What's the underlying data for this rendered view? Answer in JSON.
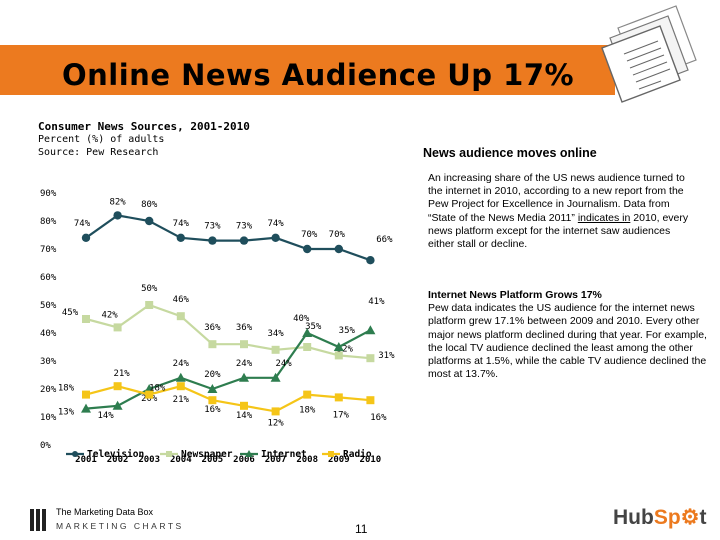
{
  "slide": {
    "title": "Online News Audience Up 17%",
    "accent_color": "#ec7a1f",
    "page_number": "11",
    "icon": "documents-icon"
  },
  "chart_head": {
    "title": "Consumer News Sources, 2001-2010",
    "subtitle": "Percent (%) of adults",
    "source": "Source:  Pew Research"
  },
  "side": {
    "title": "News audience moves online",
    "para1_before": "An increasing share of the US news audience turned to the internet in 2010, according to a new report from the Pew Project for Excellence in Journalism. Data from “State of the News Media 2011” ",
    "para1_link": "indicates in",
    "para1_after": " 2010, every news platform except for the internet saw audiences either stall or decline.",
    "para2_heading": "Internet News Platform Grows 17%",
    "para2_body": "Pew data indicates the US audience for the internet news platform grew 17.1% between 2009 and 2010. Every other major news platform declined during that year. For example, the local TV audience declined the least among the other platforms at 1.5%, while the cable TV audience declined the most at 13.7%."
  },
  "footer": {
    "source_name": "The Marketing Data Box",
    "source_sub": "MARKETING CHARTS",
    "brand_a": "Hub",
    "brand_b": "Sp",
    "brand_c": "t"
  },
  "chart_data": {
    "type": "line",
    "title": "Consumer News Sources, 2001-2010",
    "ylabel": "Percent (%) of adults",
    "ylim": [
      0,
      90
    ],
    "yticks": [
      0,
      10,
      20,
      30,
      40,
      50,
      60,
      70,
      80,
      90
    ],
    "x": [
      "2001",
      "2002",
      "2003",
      "2004",
      "2005",
      "2006",
      "2007",
      "2008",
      "2009",
      "2010"
    ],
    "series": [
      {
        "name": "Television",
        "color": "#1f4e5c",
        "marker": "circle",
        "values": [
          74,
          82,
          80,
          74,
          73,
          73,
          74,
          70,
          70,
          66
        ]
      },
      {
        "name": "Newspaper",
        "color": "#c6d9a0",
        "marker": "square",
        "values": [
          45,
          42,
          50,
          46,
          36,
          36,
          34,
          35,
          32,
          31
        ]
      },
      {
        "name": "Internet",
        "color": "#2e7d4f",
        "marker": "triangle",
        "values": [
          13,
          14,
          20,
          24,
          20,
          24,
          24,
          40,
          35,
          41
        ]
      },
      {
        "name": "Radio",
        "color": "#f5c518",
        "marker": "square",
        "values": [
          18,
          21,
          18,
          21,
          16,
          14,
          12,
          18,
          17,
          16
        ]
      }
    ]
  }
}
